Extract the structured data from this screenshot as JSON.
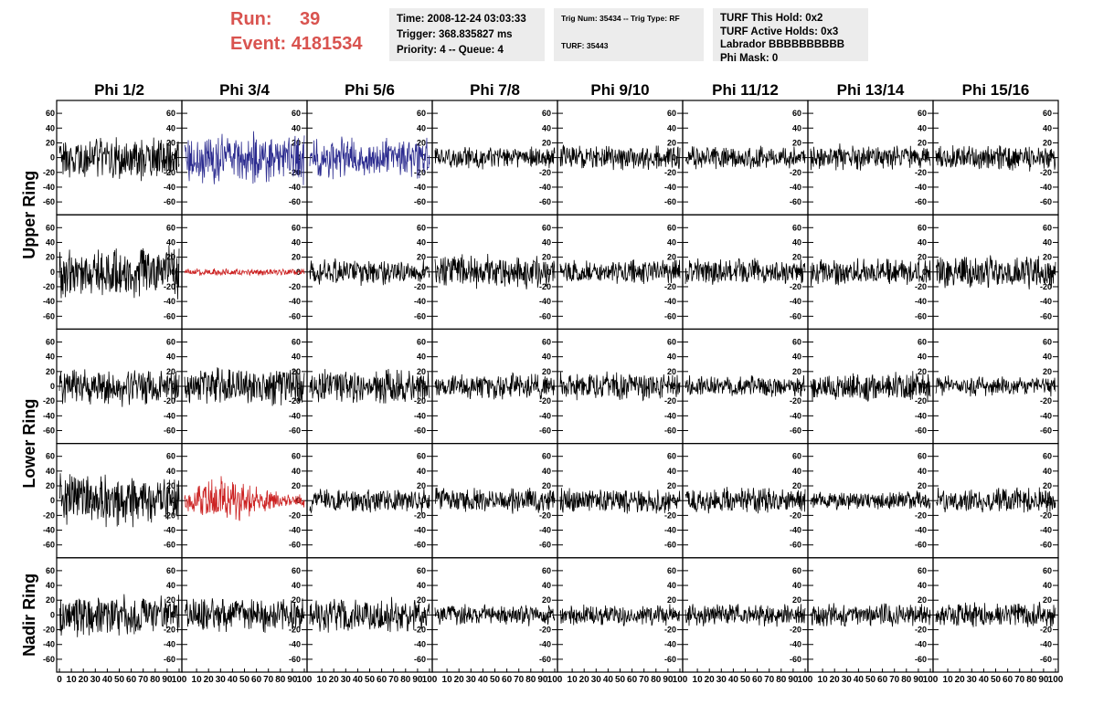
{
  "header": {
    "run_label": "Run:",
    "run_value": "39",
    "event_label": "Event:",
    "event_value": "4181534",
    "time_box": {
      "time": "Time: 2008-12-24 03:03:33",
      "trigger": "Trigger: 368.835827 ms",
      "priority": "Priority: 4 -- Queue: 4"
    },
    "trig_box": {
      "trig": "Trig Num: 35434 -- Trig Type: RF",
      "turf": "TURF: 35443"
    },
    "turf_box": {
      "this_hold": "TURF This Hold: 0x2",
      "active_holds": "TURF Active Holds: 0x3",
      "labrador": "Labrador BBBBBBBBBB",
      "phi_mask": "Phi Mask: 0"
    }
  },
  "colors": {
    "normal": "#000000",
    "blue": "#2b2b8f",
    "red": "#cc2222"
  },
  "chart_data": {
    "type": "line",
    "description_free": true,
    "columns": [
      "Phi 1/2",
      "Phi 3/4",
      "Phi 5/6",
      "Phi 7/8",
      "Phi 9/10",
      "Phi 11/12",
      "Phi 13/14",
      "Phi 15/16"
    ],
    "row_labels": [
      {
        "text": "Upper Ring",
        "rows": [
          0,
          1
        ]
      },
      {
        "text": "Lower Ring",
        "rows": [
          2,
          3
        ]
      },
      {
        "text": "Nadir Ring",
        "rows": [
          4,
          4
        ]
      }
    ],
    "ylim": [
      -70,
      70
    ],
    "yticks": [
      -60,
      -40,
      -20,
      0,
      20,
      40,
      60
    ],
    "xlim": [
      0,
      100
    ],
    "xticks_first": [
      "0",
      "10",
      "20",
      "30",
      "40",
      "50",
      "60",
      "70",
      "80",
      "90",
      "100"
    ],
    "xticks_other": [
      "10",
      "20",
      "30",
      "40",
      "50",
      "60",
      "70",
      "80",
      "90",
      "100"
    ],
    "n_samples": 260,
    "panels": [
      [
        {
          "amp": 26,
          "color": "normal"
        },
        {
          "amp": 30,
          "color": "blue"
        },
        {
          "amp": 24,
          "color": "blue"
        },
        {
          "amp": 13,
          "color": "normal"
        },
        {
          "amp": 14,
          "color": "normal"
        },
        {
          "amp": 13,
          "color": "normal"
        },
        {
          "amp": 15,
          "color": "normal"
        },
        {
          "amp": 15,
          "color": "normal"
        }
      ],
      [
        {
          "amp": 30,
          "color": "normal"
        },
        {
          "amp": 4,
          "color": "red"
        },
        {
          "amp": 15,
          "color": "normal"
        },
        {
          "amp": 20,
          "color": "normal"
        },
        {
          "amp": 14,
          "color": "normal"
        },
        {
          "amp": 16,
          "color": "normal"
        },
        {
          "amp": 16,
          "color": "normal"
        },
        {
          "amp": 20,
          "color": "normal"
        }
      ],
      [
        {
          "amp": 22,
          "color": "normal"
        },
        {
          "amp": 22,
          "color": "normal"
        },
        {
          "amp": 20,
          "color": "normal"
        },
        {
          "amp": 15,
          "color": "normal"
        },
        {
          "amp": 16,
          "color": "normal"
        },
        {
          "amp": 12,
          "color": "normal"
        },
        {
          "amp": 18,
          "color": "normal"
        },
        {
          "amp": 12,
          "color": "normal"
        }
      ],
      [
        {
          "amp": 30,
          "color": "normal"
        },
        {
          "amp": 22,
          "color": "red"
        },
        {
          "amp": 14,
          "color": "normal"
        },
        {
          "amp": 15,
          "color": "normal"
        },
        {
          "amp": 15,
          "color": "normal"
        },
        {
          "amp": 15,
          "color": "normal"
        },
        {
          "amp": 11,
          "color": "normal"
        },
        {
          "amp": 15,
          "color": "normal"
        }
      ],
      [
        {
          "amp": 24,
          "color": "normal"
        },
        {
          "amp": 20,
          "color": "normal"
        },
        {
          "amp": 20,
          "color": "normal"
        },
        {
          "amp": 12,
          "color": "normal"
        },
        {
          "amp": 12,
          "color": "normal"
        },
        {
          "amp": 13,
          "color": "normal"
        },
        {
          "amp": 13,
          "color": "normal"
        },
        {
          "amp": 14,
          "color": "normal"
        }
      ]
    ]
  }
}
